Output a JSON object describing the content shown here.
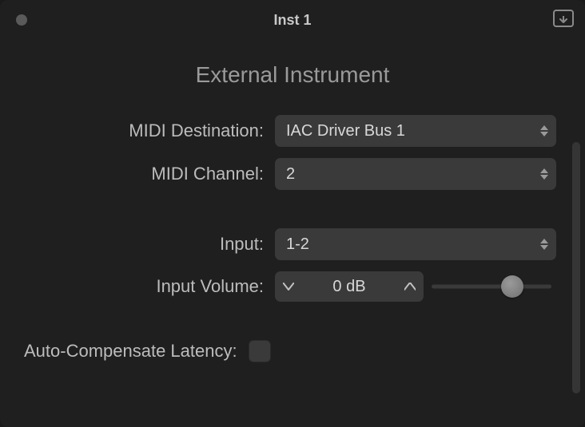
{
  "window": {
    "title": "Inst 1"
  },
  "panel": {
    "heading": "External Instrument"
  },
  "fields": {
    "midi_destination": {
      "label": "MIDI Destination:",
      "value": "IAC Driver Bus 1"
    },
    "midi_channel": {
      "label": "MIDI Channel:",
      "value": "2"
    },
    "input": {
      "label": "Input:",
      "value": "1-2"
    },
    "input_volume": {
      "label": "Input Volume:",
      "value": "0  dB",
      "slider_pct": 67
    },
    "auto_latency": {
      "label": "Auto-Compensate Latency:",
      "checked": false
    }
  },
  "colors": {
    "bg": "#1f1f1f",
    "control_bg": "#3a3a3a",
    "text": "#bcbcbc",
    "value_text": "#d8d8d8"
  }
}
